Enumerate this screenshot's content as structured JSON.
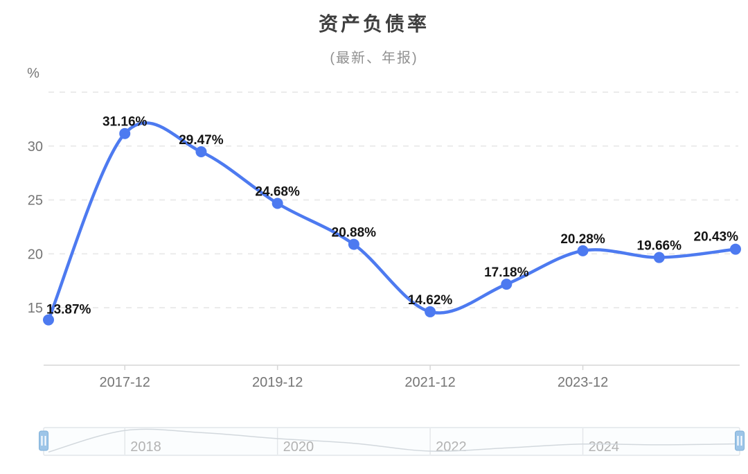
{
  "header": {
    "title": "资产负债率",
    "subtitle": "(最新、年报)"
  },
  "chart_data": {
    "type": "line",
    "title": "资产负债率",
    "subtitle": "(最新、年报)",
    "y_axis_unit": "%",
    "series": [
      {
        "name": "资产负债率",
        "values": [
          13.87,
          31.16,
          29.47,
          24.68,
          20.88,
          14.62,
          17.18,
          20.28,
          19.66,
          20.43
        ],
        "point_labels": [
          "13.87%",
          "31.16%",
          "29.47%",
          "24.68%",
          "20.88%",
          "14.62%",
          "17.18%",
          "20.28%",
          "19.66%",
          "20.43%"
        ]
      }
    ],
    "x_ticks": [
      {
        "label": "2017-12",
        "point_index": 1
      },
      {
        "label": "2019-12",
        "point_index": 3
      },
      {
        "label": "2021-12",
        "point_index": 5
      },
      {
        "label": "2023-12",
        "point_index": 7
      }
    ],
    "y_ticks": [
      "15",
      "20",
      "25",
      "30"
    ],
    "y_grid_values": [
      15,
      20,
      25,
      30,
      35
    ],
    "ylim": [
      9.3,
      36.3
    ],
    "grid": "dashed-horizontal",
    "legend": "none",
    "colors": {
      "line": "#4D7AF0",
      "point": "#4D7AF0",
      "point_label": "#141414",
      "axis_label": "#757575",
      "grid_line": "#ebebeb",
      "axis_line": "#d6d6d6",
      "title": "#3f3f3f",
      "subtitle": "#909090"
    },
    "slider": {
      "year_labels": [
        "2018",
        "2020",
        "2022",
        "2024"
      ],
      "track_fill": "#fbfdfe",
      "track_border": "#e2e6ea",
      "grid_line": "#e4e7ea",
      "mini_line": "#d2d8dd",
      "label_color": "#b3b3b3",
      "handle_fill": "#9dc5e8",
      "handle_border": "#7fb0d8",
      "handle_grip": "#ffffff"
    }
  }
}
